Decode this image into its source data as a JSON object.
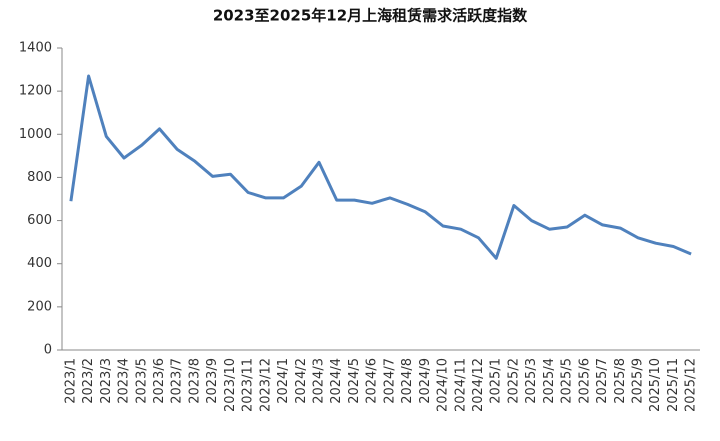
{
  "chart_data": {
    "type": "line",
    "title": "2023至2025年12月上海租赁需求活跃度指数",
    "categories": [
      "2023/1",
      "2023/2",
      "2023/3",
      "2023/4",
      "2023/5",
      "2023/6",
      "2023/7",
      "2023/8",
      "2023/9",
      "2023/10",
      "2023/11",
      "2023/12",
      "2024/1",
      "2024/2",
      "2024/3",
      "2024/4",
      "2024/5",
      "2024/6",
      "2024/7",
      "2024/8",
      "2024/9",
      "2024/10",
      "2024/11",
      "2024/12",
      "2025/1",
      "2025/2",
      "2025/3",
      "2025/4",
      "2025/5",
      "2025/6",
      "2025/7",
      "2025/8",
      "2025/9",
      "2025/10",
      "2025/11",
      "2025/12"
    ],
    "values": [
      690,
      1270,
      990,
      890,
      950,
      1025,
      930,
      875,
      805,
      815,
      730,
      705,
      705,
      760,
      870,
      695,
      695,
      680,
      705,
      675,
      640,
      575,
      560,
      520,
      425,
      670,
      600,
      560,
      570,
      625,
      580,
      565,
      520,
      495,
      480,
      445
    ],
    "color": "#4f81bd",
    "ylim": [
      0,
      1400
    ],
    "yticks": [
      0,
      200,
      400,
      600,
      800,
      1000,
      1200,
      1400
    ],
    "grid": false
  }
}
